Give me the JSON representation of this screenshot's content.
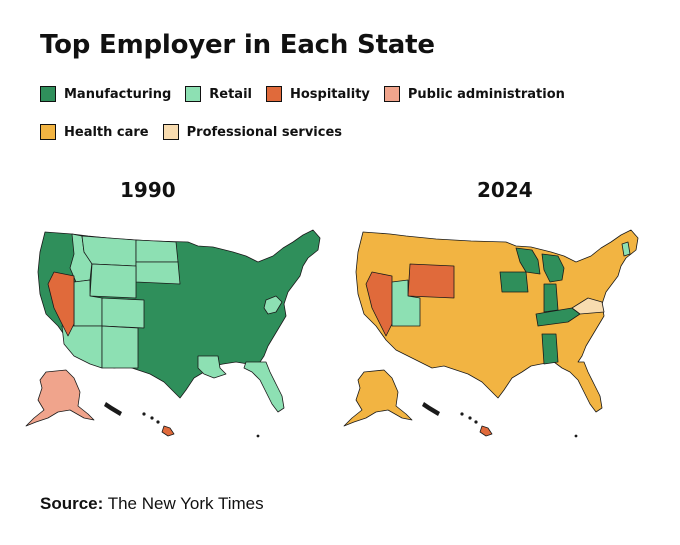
{
  "title": "Top Employer in Each State",
  "legend": [
    {
      "label": "Manufacturing",
      "color": "#2f8f5b"
    },
    {
      "label": "Retail",
      "color": "#8de0b3"
    },
    {
      "label": "Hospitality",
      "color": "#e06a3b"
    },
    {
      "label": "Public administration",
      "color": "#f0a48c"
    },
    {
      "label": "Health care",
      "color": "#f2b442"
    },
    {
      "label": "Professional services",
      "color": "#f8dcb0"
    }
  ],
  "maps": [
    {
      "year": "1990",
      "regions": {
        "alaska": "Public administration",
        "hawaii": "Hospitality",
        "nevada": "Hospitality",
        "florida": "Retail",
        "louisiana": "Retail",
        "arizona": "Retail",
        "colorado": "Retail",
        "utah": "Retail",
        "montana": "Retail",
        "wyoming": "Retail",
        "new_mexico": "Retail",
        "idaho": "Retail",
        "north_dakota": "Retail",
        "south_dakota": "Retail",
        "west_virginia": "Retail",
        "other_states": "Manufacturing"
      }
    },
    {
      "year": "2024",
      "regions": {
        "nevada": "Hospitality",
        "wyoming": "Hospitality",
        "hawaii": "Hospitality",
        "utah": "Retail",
        "vermont": "Retail",
        "iowa": "Manufacturing",
        "wisconsin": "Manufacturing",
        "michigan": "Manufacturing",
        "indiana": "Manufacturing",
        "kentucky": "Manufacturing",
        "alabama": "Manufacturing",
        "virginia": "Professional services",
        "other_states": "Health care"
      }
    }
  ],
  "source": {
    "label": "Source:",
    "text": " The New York Times"
  }
}
